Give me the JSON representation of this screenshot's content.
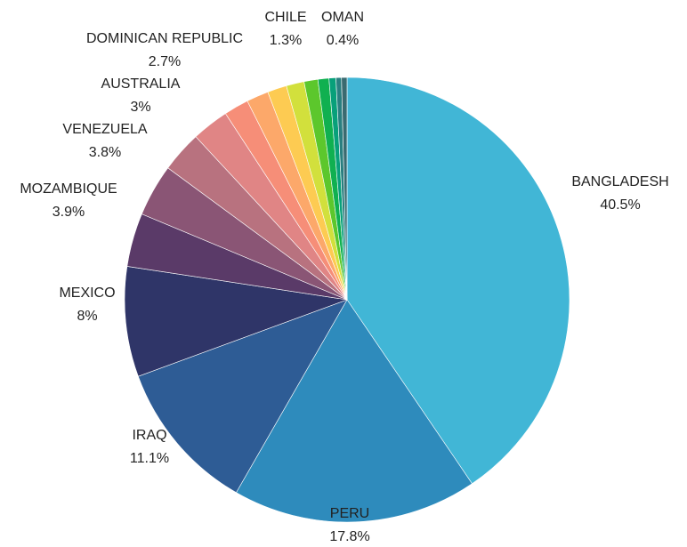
{
  "chart_data": {
    "type": "pie",
    "categories": [
      "BANGLADESH",
      "PERU",
      "IRAQ",
      "MEXICO",
      "MOZAMBIQUE",
      "VENEZUELA",
      "AUSTRALIA",
      "DOMINICAN REPUBLIC",
      null,
      null,
      null,
      "CHILE",
      null,
      null,
      null,
      null,
      "OMAN"
    ],
    "values": [
      40.5,
      17.8,
      11.1,
      8,
      3.9,
      3.8,
      3,
      2.7,
      1.8,
      1.6,
      1.4,
      1.3,
      1.0,
      0.8,
      0.5,
      0.4,
      0.4
    ],
    "value_labels": [
      "40.5%",
      "17.8%",
      "11.1%",
      "8%",
      "3.9%",
      "3.8%",
      "3%",
      "2.7%",
      null,
      null,
      null,
      "1.3%",
      null,
      null,
      null,
      null,
      "0.4%"
    ],
    "colors": [
      "#41b6d6",
      "#2e8bbc",
      "#2e5c95",
      "#2f3568",
      "#5a3a68",
      "#8a5575",
      "#b8727f",
      "#e08585",
      "#f68e78",
      "#fca86a",
      "#fdcb52",
      "#d2e03c",
      "#5cc72c",
      "#10b050",
      "#08a07a",
      "#2a7f80",
      "#3a6a70"
    ]
  }
}
